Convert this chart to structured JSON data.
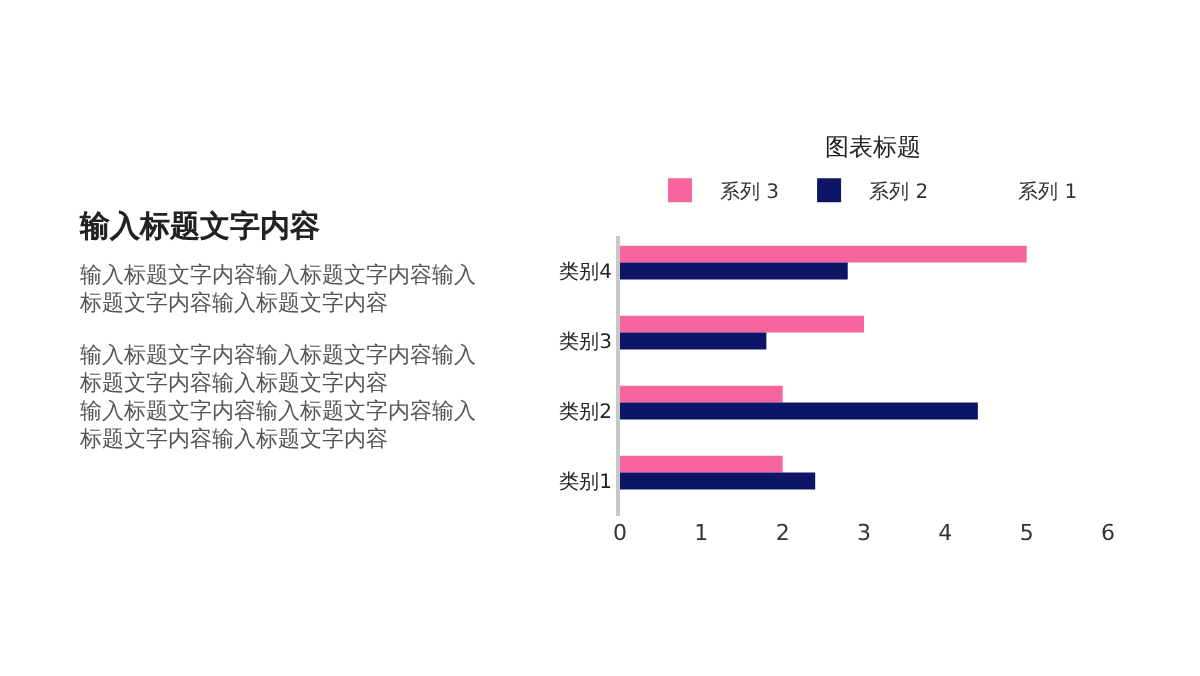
{
  "chart_data": [
    {
      "type": "other",
      "title": "输入标题文字内容",
      "annotations": [
        "输入标题文字内容输入标题文字内容输入标题文字内容输入标题文字内容",
        "输入标题文字内容输入标题文字内容输入标题文字内容输入标题文字内容",
        "输入标题文字内容输入标题文字内容输入标题文字内容输入标题文字内容"
      ]
    },
    {
      "type": "bar",
      "orientation": "horizontal",
      "title": "图表标题",
      "categories": [
        "类别4",
        "类别3",
        "类别2",
        "类别1"
      ],
      "series": [
        {
          "name": "系列 3",
          "color": "#f7659f",
          "values": [
            5,
            3,
            2,
            2
          ]
        },
        {
          "name": "系列 2",
          "color": "#0d1566",
          "values": [
            2.8,
            1.8,
            4.4,
            2.4
          ]
        },
        {
          "name": "系列 1",
          "values": [
            null,
            null,
            null,
            null
          ]
        }
      ],
      "xlim": [
        0,
        6
      ],
      "xticks": [
        0,
        1,
        2,
        3,
        4,
        5,
        6
      ],
      "grid": false,
      "legend": "top"
    }
  ]
}
